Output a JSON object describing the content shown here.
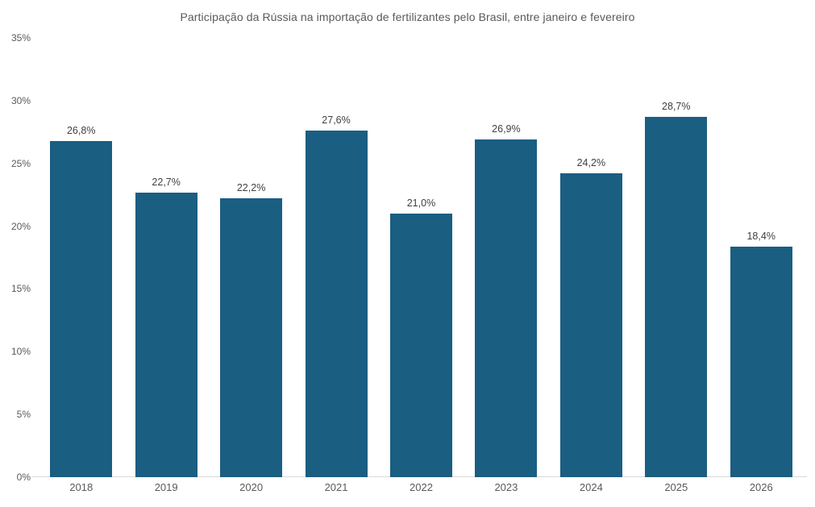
{
  "chart_data": {
    "type": "bar",
    "title": "Participação da Rússia na importação de fertilizantes pelo Brasil, entre janeiro e fevereiro",
    "categories": [
      "2018",
      "2019",
      "2020",
      "2021",
      "2022",
      "2023",
      "2024",
      "2025",
      "2026"
    ],
    "values": [
      26.8,
      22.7,
      22.2,
      27.6,
      21.0,
      26.9,
      24.2,
      28.7,
      18.4
    ],
    "value_labels": [
      "26,8%",
      "22,7%",
      "22,2%",
      "27,6%",
      "21,0%",
      "26,9%",
      "24,2%",
      "28,7%",
      "18,4%"
    ],
    "y_tick_labels": [
      "35%",
      "30%",
      "25%",
      "20%",
      "15%",
      "10%",
      "5%",
      "0%"
    ],
    "ylim": [
      0,
      35
    ],
    "xlabel": "",
    "ylabel": "",
    "bar_color": "#1A5E82",
    "label_color": "#404040",
    "axis_text_color": "#595959",
    "axis_line_color": "#d9d9d9",
    "grid": false,
    "legend": false
  }
}
